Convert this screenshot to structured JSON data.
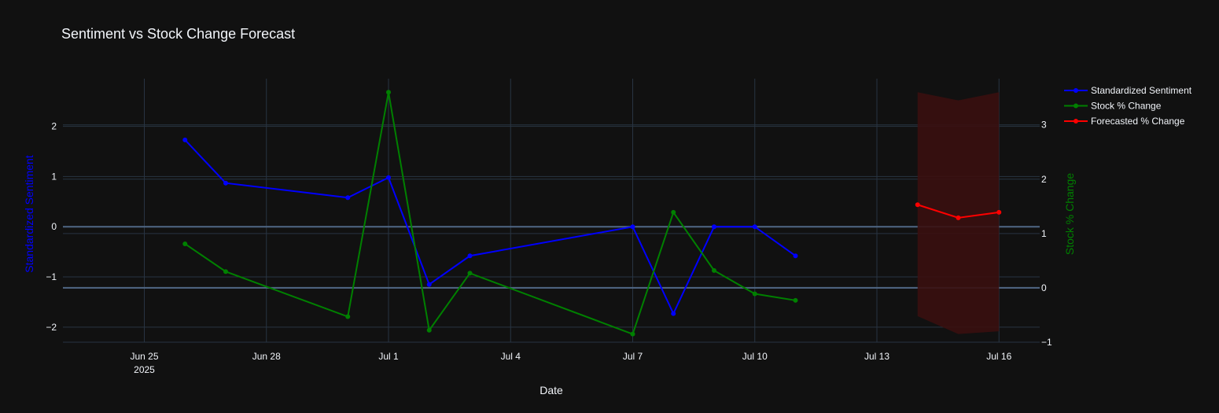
{
  "chart_data": {
    "type": "line",
    "title": "Sentiment vs Stock Change Forecast",
    "xlabel": "Date",
    "ylabel_left": "Standardized Sentiment",
    "ylabel_right": "Stock % Change",
    "x_axis": {
      "range": [
        "2025-06-23",
        "2025-07-17"
      ],
      "ticks": [
        {
          "date": "2025-06-25",
          "label": "Jun 25",
          "sublabel": "2025"
        },
        {
          "date": "2025-06-28",
          "label": "Jun 28"
        },
        {
          "date": "2025-07-01",
          "label": "Jul 1"
        },
        {
          "date": "2025-07-04",
          "label": "Jul 4"
        },
        {
          "date": "2025-07-07",
          "label": "Jul 7"
        },
        {
          "date": "2025-07-10",
          "label": "Jul 10"
        },
        {
          "date": "2025-07-13",
          "label": "Jul 13"
        },
        {
          "date": "2025-07-16",
          "label": "Jul 16"
        }
      ]
    },
    "y_left": {
      "range": [
        -2.3,
        2.95
      ],
      "ticks": [
        2,
        1,
        0,
        -1,
        -2
      ],
      "tick_labels": [
        "2",
        "1",
        "0",
        "−1",
        "−2"
      ]
    },
    "y_right": {
      "range": [
        -1,
        3.85
      ],
      "ticks": [
        3,
        2,
        1,
        0,
        -1
      ],
      "tick_labels": [
        "3",
        "2",
        "1",
        "0",
        "−1"
      ]
    },
    "grid": true,
    "legend_position": "top-right",
    "series": [
      {
        "name": "Standardized Sentiment",
        "axis": "left",
        "color": "#0000ff",
        "x": [
          "2025-06-26",
          "2025-06-27",
          "2025-06-30",
          "2025-07-01",
          "2025-07-02",
          "2025-07-03",
          "2025-07-07",
          "2025-07-08",
          "2025-07-09",
          "2025-07-10",
          "2025-07-11"
        ],
        "y": [
          1.73,
          0.87,
          0.58,
          0.98,
          -1.15,
          -0.58,
          0.0,
          -1.73,
          0.0,
          0.0,
          -0.58
        ]
      },
      {
        "name": "Stock % Change",
        "axis": "right",
        "color": "#008000",
        "x": [
          "2025-06-26",
          "2025-06-27",
          "2025-06-30",
          "2025-07-01",
          "2025-07-02",
          "2025-07-03",
          "2025-07-07",
          "2025-07-08",
          "2025-07-09",
          "2025-07-10",
          "2025-07-11"
        ],
        "y": [
          0.81,
          0.3,
          -0.53,
          3.6,
          -0.78,
          0.27,
          -0.85,
          1.39,
          0.32,
          -0.11,
          -0.23
        ]
      },
      {
        "name": "Forecasted % Change",
        "axis": "right",
        "color": "#ff0000",
        "x": [
          "2025-07-14",
          "2025-07-15",
          "2025-07-16"
        ],
        "y": [
          1.53,
          1.29,
          1.39
        ],
        "band_upper": [
          3.6,
          3.45,
          3.6
        ],
        "band_lower": [
          -0.52,
          -0.85,
          -0.8
        ],
        "band_color": "#3a1010"
      }
    ]
  }
}
